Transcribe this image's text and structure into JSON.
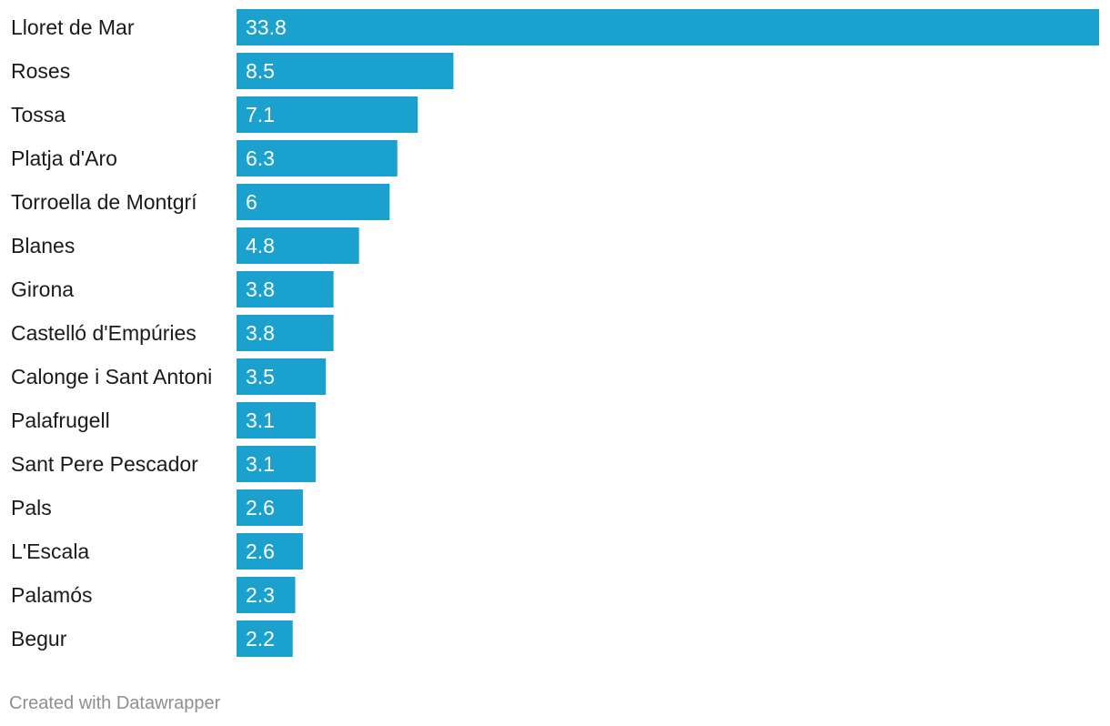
{
  "chart_data": {
    "type": "bar",
    "orientation": "horizontal",
    "categories": [
      "Lloret de Mar",
      "Roses",
      "Tossa",
      "Platja d'Aro",
      "Torroella de Montgrí",
      "Blanes",
      "Girona",
      "Castelló d'Empúries",
      "Calonge i Sant Antoni",
      "Palafrugell",
      "Sant Pere Pescador",
      "Pals",
      "L'Escala",
      "Palamós",
      "Begur"
    ],
    "values": [
      33.8,
      8.5,
      7.1,
      6.3,
      6,
      4.8,
      3.8,
      3.8,
      3.5,
      3.1,
      3.1,
      2.6,
      2.6,
      2.3,
      2.2
    ],
    "value_labels": [
      "33.8",
      "8.5",
      "7.1",
      "6.3",
      "6",
      "4.8",
      "3.8",
      "3.8",
      "3.5",
      "3.1",
      "3.1",
      "2.6",
      "2.6",
      "2.3",
      "2.2"
    ],
    "xlim": [
      0,
      33.8
    ],
    "bar_color": "#1ba1ce",
    "grid": false,
    "legend": "none"
  },
  "footer": {
    "credit": "Created with Datawrapper"
  }
}
